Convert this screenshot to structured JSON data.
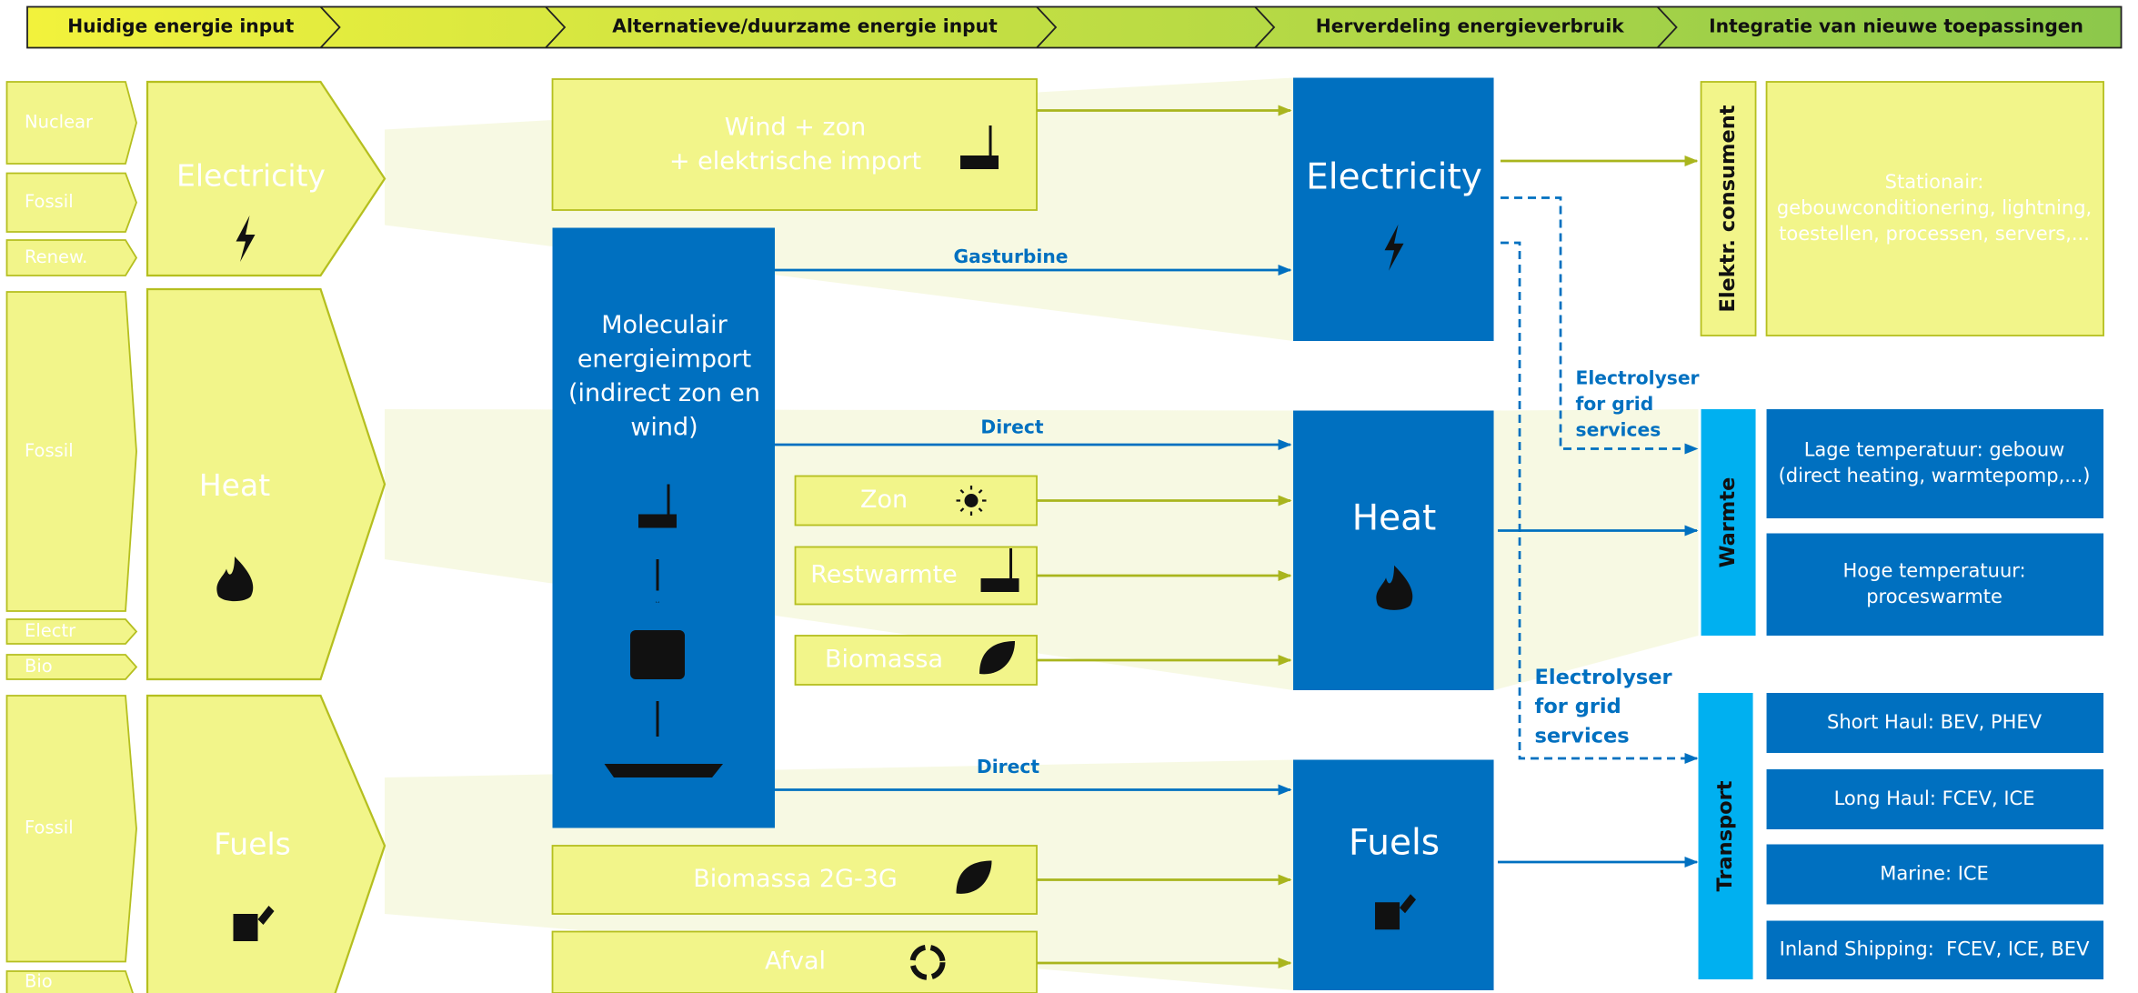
{
  "header": {
    "stages": [
      "Huidige energie input",
      "Alternatieve/duurzame energie input",
      "Herverdeling energieverbruik",
      "Integratie van nieuwe toepassingen"
    ]
  },
  "sources": [
    {
      "label": "Electricity",
      "inputs": [
        "Nuclear",
        "Fossil",
        "Renew."
      ]
    },
    {
      "label": "Heat",
      "inputs": [
        "Fossil",
        "Electr",
        "Bio"
      ]
    },
    {
      "label": "Fuels",
      "inputs": [
        "Fossil",
        "Bio"
      ]
    }
  ],
  "alternatives": {
    "wind": [
      "Wind + zon",
      "+ elektrische import"
    ],
    "molecular": [
      "Moleculair",
      "energieimport",
      "(indirect zon en",
      "wind)"
    ],
    "zon": "Zon",
    "restwarmte": "Restwarmte",
    "biomassa": "Biomassa",
    "biomassa_2g3g": "Biomassa 2G-3G",
    "afval": "Afval"
  },
  "links": {
    "gasturbine": "Gasturbine",
    "direct_heat": "Direct",
    "direct_fuels": "Direct",
    "electrolyser_heat": [
      "Electrolyser",
      "for grid",
      "services"
    ],
    "electrolyser_transport": [
      "Electrolyser",
      "for grid",
      "services"
    ]
  },
  "hubs": [
    "Electricity",
    "Heat",
    "Fuels"
  ],
  "consumers": [
    {
      "category": "Elektr. consument",
      "items": [
        [
          "Stationair:",
          "gebouwconditionering, lightning,",
          "toestellen, processen, servers,..."
        ]
      ]
    },
    {
      "category": "Warmte",
      "items": [
        [
          "Lage temperatuur: gebouw",
          "(direct heating, warmtepomp,...)"
        ],
        [
          "Hoge temperatuur:",
          "proceswarmte"
        ]
      ]
    },
    {
      "category": "Transport",
      "items": [
        [
          "Short Haul: BEV, PHEV"
        ],
        [
          "Long Haul: FCEV, ICE"
        ],
        [
          "Marine: ICE"
        ],
        [
          "Inland Shipping:  FCEV, ICE, BEV"
        ]
      ]
    }
  ]
}
